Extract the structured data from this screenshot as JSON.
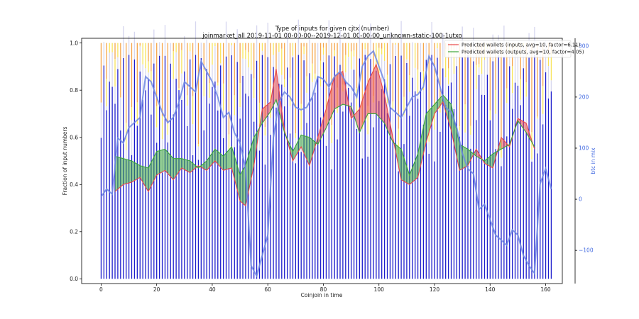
{
  "chart_data": {
    "type": "bar",
    "title": "Type of inputs for given cjtx (number)",
    "subtitle": "joinmarket_all 2019-11-01 00-00-00--2019-12-01 00-00-00_unknown-static-100-1utxo",
    "xlabel": "Coinjoin in time",
    "ylabel": "Fraction of input numbers",
    "y2label": "btc in mix",
    "xlim": [
      -7,
      166
    ],
    "ylim": [
      -0.02,
      1.02
    ],
    "y2lim": [
      -165,
      315
    ],
    "xticks": [
      "0",
      "20",
      "40",
      "60",
      "80",
      "100",
      "120",
      "140",
      "160"
    ],
    "yticks": [
      "0.0",
      "0.2",
      "0.4",
      "0.6",
      "0.8",
      "1.0"
    ],
    "y2ticks": [
      "−100",
      "0",
      "100",
      "200",
      "300"
    ],
    "grid": false,
    "legend_position": "top-right",
    "legend": [
      {
        "label": "Predicted wallets (inputs, avg=10, factor=6.11)",
        "color": "#e8474a"
      },
      {
        "label": "Predicted wallets (outputs, avg=10, factor=4.05)",
        "color": "#3aa53a"
      }
    ],
    "bars": {
      "n": 163,
      "segments": [
        {
          "name": "blue",
          "color": "#1c1ccc"
        },
        {
          "name": "lavender",
          "color": "#d6d6ef"
        },
        {
          "name": "yellow",
          "color": "#f7e35a"
        },
        {
          "name": "orange",
          "color": "#f5a54a"
        }
      ]
    },
    "series": [
      {
        "name": "Predicted wallets (inputs, avg=10, factor=6.11)",
        "color": "#e8474a",
        "x": [
          5,
          8,
          11,
          14,
          17,
          20,
          23,
          26,
          29,
          32,
          35,
          38,
          41,
          44,
          47,
          50,
          52,
          55,
          58,
          61,
          63,
          66,
          69,
          72,
          75,
          78,
          81,
          84,
          87,
          90,
          93,
          96,
          99,
          102,
          105,
          108,
          111,
          114,
          117,
          120,
          123,
          126,
          129,
          132,
          135,
          138,
          141,
          144,
          147,
          150,
          153,
          156
        ],
        "values": [
          0.37,
          0.4,
          0.41,
          0.43,
          0.37,
          0.44,
          0.46,
          0.42,
          0.47,
          0.45,
          0.48,
          0.46,
          0.5,
          0.46,
          0.47,
          0.33,
          0.31,
          0.48,
          0.72,
          0.75,
          0.89,
          0.63,
          0.5,
          0.56,
          0.48,
          0.6,
          0.72,
          0.86,
          0.88,
          0.68,
          0.72,
          0.83,
          0.91,
          0.78,
          0.6,
          0.42,
          0.4,
          0.43,
          0.58,
          0.7,
          0.75,
          0.63,
          0.46,
          0.48,
          0.55,
          0.49,
          0.47,
          0.6,
          0.56,
          0.68,
          0.66,
          0.55
        ]
      },
      {
        "name": "Predicted wallets (outputs, avg=10, factor=4.05)",
        "color": "#3aa53a",
        "x": [
          5,
          8,
          11,
          14,
          17,
          20,
          23,
          26,
          29,
          32,
          35,
          38,
          41,
          44,
          47,
          50,
          52,
          55,
          58,
          61,
          63,
          66,
          69,
          72,
          75,
          78,
          81,
          84,
          87,
          90,
          93,
          96,
          99,
          102,
          105,
          108,
          111,
          114,
          117,
          120,
          123,
          126,
          129,
          132,
          135,
          138,
          141,
          144,
          147,
          150,
          153,
          156
        ],
        "values": [
          0.52,
          0.51,
          0.5,
          0.48,
          0.47,
          0.54,
          0.55,
          0.51,
          0.51,
          0.5,
          0.47,
          0.5,
          0.55,
          0.52,
          0.56,
          0.44,
          0.48,
          0.6,
          0.66,
          0.71,
          0.76,
          0.62,
          0.54,
          0.61,
          0.6,
          0.57,
          0.64,
          0.72,
          0.74,
          0.73,
          0.62,
          0.7,
          0.7,
          0.66,
          0.58,
          0.55,
          0.44,
          0.53,
          0.7,
          0.74,
          0.78,
          0.74,
          0.57,
          0.55,
          0.52,
          0.5,
          0.53,
          0.55,
          0.57,
          0.67,
          0.62,
          0.56
        ]
      },
      {
        "name": "btc in mix",
        "color": "#6d87e3",
        "axis": "right",
        "x": [
          0,
          2,
          4,
          6,
          8,
          10,
          12,
          14,
          16,
          18,
          20,
          22,
          24,
          26,
          28,
          30,
          32,
          34,
          36,
          38,
          40,
          42,
          44,
          46,
          48,
          50,
          52,
          54,
          56,
          58,
          60,
          62,
          64,
          66,
          68,
          70,
          72,
          74,
          76,
          78,
          80,
          82,
          84,
          86,
          88,
          90,
          92,
          94,
          96,
          98,
          100,
          102,
          104,
          106,
          108,
          110,
          112,
          114,
          116,
          118,
          120,
          122,
          124,
          126,
          128,
          130,
          132,
          134,
          136,
          138,
          140,
          142,
          144,
          146,
          148,
          150,
          152,
          154,
          156,
          158,
          160,
          162
        ],
        "values": [
          5,
          20,
          10,
          120,
          110,
          140,
          150,
          160,
          240,
          230,
          200,
          170,
          150,
          160,
          190,
          230,
          220,
          210,
          270,
          250,
          230,
          200,
          160,
          170,
          130,
          110,
          60,
          -130,
          -150,
          -110,
          -70,
          120,
          190,
          210,
          200,
          180,
          175,
          180,
          200,
          240,
          235,
          220,
          240,
          250,
          230,
          220,
          200,
          260,
          280,
          290,
          260,
          230,
          180,
          170,
          160,
          180,
          200,
          205,
          220,
          280,
          260,
          220,
          180,
          170,
          140,
          90,
          60,
          50,
          -20,
          -10,
          -40,
          -70,
          -80,
          -90,
          -60,
          -70,
          -110,
          -130,
          -145,
          30,
          60,
          20
        ]
      }
    ]
  }
}
